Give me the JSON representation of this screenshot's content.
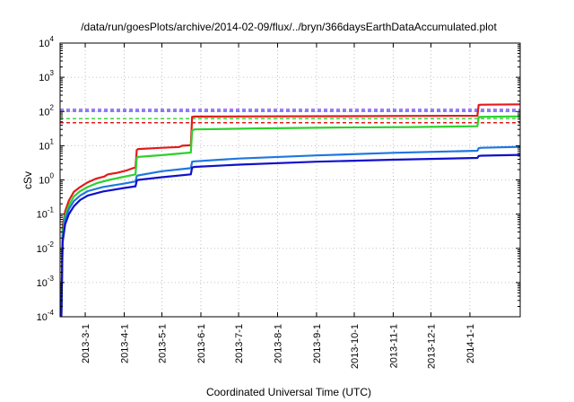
{
  "chart_data": {
    "type": "line",
    "title": "/data/run/goesPlots/archive/2014-02-09/flux/../bryn/366daysEarthDataAccumulated.plot",
    "xlabel": "Coordinated Universal Time (UTC)",
    "ylabel": "cSv",
    "yscale": "log",
    "ylim": [
      0.0001,
      10000
    ],
    "xlim": [
      "2013-02-09",
      "2014-02-10"
    ],
    "grid": true,
    "x_ticks": [
      "2013-3-1",
      "2013-4-1",
      "2013-5-1",
      "2013-6-1",
      "2013-7-1",
      "2013-8-1",
      "2013-9-1",
      "2013-10-1",
      "2013-11-1",
      "2013-12-1",
      "2014-1-1"
    ],
    "y_ticks": [
      {
        "value": 0.0001,
        "base": "10",
        "exp": "-4"
      },
      {
        "value": 0.001,
        "base": "10",
        "exp": "-3"
      },
      {
        "value": 0.01,
        "base": "10",
        "exp": "-2"
      },
      {
        "value": 0.1,
        "base": "10",
        "exp": "-1"
      },
      {
        "value": 1,
        "base": "10",
        "exp": "0"
      },
      {
        "value": 10,
        "base": "10",
        "exp": "1"
      },
      {
        "value": 100,
        "base": "10",
        "exp": "2"
      },
      {
        "value": 1000,
        "base": "10",
        "exp": "3"
      },
      {
        "value": 10000,
        "base": "10",
        "exp": "4"
      }
    ],
    "reference_lines": [
      {
        "color": "#9b30d9",
        "value": 115
      },
      {
        "color": "#2a52ff",
        "value": 102
      },
      {
        "color": "#2ed12e",
        "value": 62
      },
      {
        "color": "#e41a1a",
        "value": 47
      }
    ],
    "series": [
      {
        "color": "#e41a1a",
        "points": [
          [
            "2013-02-10",
            0.0001
          ],
          [
            "2013-02-11",
            0.04
          ],
          [
            "2013-02-13",
            0.12
          ],
          [
            "2013-02-16",
            0.25
          ],
          [
            "2013-02-20",
            0.45
          ],
          [
            "2013-02-25",
            0.62
          ],
          [
            "2013-03-03",
            0.85
          ],
          [
            "2013-03-10",
            1.1
          ],
          [
            "2013-03-16",
            1.25
          ],
          [
            "2013-03-19",
            1.45
          ],
          [
            "2013-03-26",
            1.6
          ],
          [
            "2013-04-03",
            1.9
          ],
          [
            "2013-04-08",
            2.2
          ],
          [
            "2013-04-10",
            2.3
          ],
          [
            "2013-04-11",
            7.5
          ],
          [
            "2013-04-12",
            8.0
          ],
          [
            "2013-05-01",
            8.7
          ],
          [
            "2013-05-15",
            9.2
          ],
          [
            "2013-05-17",
            10.0
          ],
          [
            "2013-05-24",
            10.3
          ],
          [
            "2013-05-25",
            70
          ],
          [
            "2013-05-27",
            71
          ],
          [
            "2013-07-15",
            72
          ],
          [
            "2013-09-15",
            73
          ],
          [
            "2013-11-15",
            74
          ],
          [
            "2014-01-07",
            75
          ],
          [
            "2014-01-08",
            155
          ],
          [
            "2014-01-10",
            158
          ],
          [
            "2014-02-10",
            162
          ]
        ]
      },
      {
        "color": "#2ed12e",
        "points": [
          [
            "2013-02-10",
            0.0001
          ],
          [
            "2013-02-11",
            0.03
          ],
          [
            "2013-02-13",
            0.09
          ],
          [
            "2013-02-16",
            0.18
          ],
          [
            "2013-02-20",
            0.33
          ],
          [
            "2013-02-25",
            0.47
          ],
          [
            "2013-03-03",
            0.62
          ],
          [
            "2013-03-10",
            0.8
          ],
          [
            "2013-03-20",
            1.0
          ],
          [
            "2013-03-30",
            1.2
          ],
          [
            "2013-04-08",
            1.4
          ],
          [
            "2013-04-10",
            1.45
          ],
          [
            "2013-04-11",
            4.5
          ],
          [
            "2013-04-12",
            4.7
          ],
          [
            "2013-05-01",
            5.3
          ],
          [
            "2013-05-24",
            6.3
          ],
          [
            "2013-05-25",
            28
          ],
          [
            "2013-05-27",
            30
          ],
          [
            "2013-07-15",
            32
          ],
          [
            "2013-09-15",
            34
          ],
          [
            "2013-11-15",
            35
          ],
          [
            "2014-01-07",
            37
          ],
          [
            "2014-01-08",
            68
          ],
          [
            "2014-01-10",
            70
          ],
          [
            "2014-02-10",
            72
          ]
        ]
      },
      {
        "color": "#1f77e0",
        "points": [
          [
            "2013-02-10",
            0.0001
          ],
          [
            "2013-02-11",
            0.02
          ],
          [
            "2013-02-13",
            0.07
          ],
          [
            "2013-02-16",
            0.14
          ],
          [
            "2013-02-20",
            0.24
          ],
          [
            "2013-02-25",
            0.35
          ],
          [
            "2013-03-03",
            0.47
          ],
          [
            "2013-03-15",
            0.62
          ],
          [
            "2013-04-01",
            0.78
          ],
          [
            "2013-04-10",
            0.9
          ],
          [
            "2013-04-11",
            1.3
          ],
          [
            "2013-04-12",
            1.35
          ],
          [
            "2013-05-01",
            1.8
          ],
          [
            "2013-05-24",
            2.2
          ],
          [
            "2013-05-25",
            3.4
          ],
          [
            "2013-05-27",
            3.5
          ],
          [
            "2013-07-01",
            4.2
          ],
          [
            "2013-09-01",
            5.2
          ],
          [
            "2013-11-01",
            6.2
          ],
          [
            "2014-01-07",
            7.1
          ],
          [
            "2014-01-08",
            8.5
          ],
          [
            "2014-01-10",
            8.7
          ],
          [
            "2014-02-10",
            9.3
          ]
        ]
      },
      {
        "color": "#1010cc",
        "points": [
          [
            "2013-02-10",
            0.0001
          ],
          [
            "2013-02-11",
            0.015
          ],
          [
            "2013-02-13",
            0.05
          ],
          [
            "2013-02-16",
            0.1
          ],
          [
            "2013-02-20",
            0.17
          ],
          [
            "2013-02-25",
            0.26
          ],
          [
            "2013-03-03",
            0.35
          ],
          [
            "2013-03-15",
            0.46
          ],
          [
            "2013-04-01",
            0.58
          ],
          [
            "2013-04-10",
            0.65
          ],
          [
            "2013-04-11",
            0.95
          ],
          [
            "2013-04-12",
            1.0
          ],
          [
            "2013-05-01",
            1.2
          ],
          [
            "2013-05-24",
            1.45
          ],
          [
            "2013-05-25",
            2.3
          ],
          [
            "2013-05-27",
            2.4
          ],
          [
            "2013-07-01",
            2.8
          ],
          [
            "2013-09-01",
            3.4
          ],
          [
            "2013-11-01",
            3.9
          ],
          [
            "2014-01-07",
            4.4
          ],
          [
            "2014-01-08",
            5.0
          ],
          [
            "2014-01-10",
            5.1
          ],
          [
            "2014-02-10",
            5.4
          ]
        ]
      }
    ]
  }
}
